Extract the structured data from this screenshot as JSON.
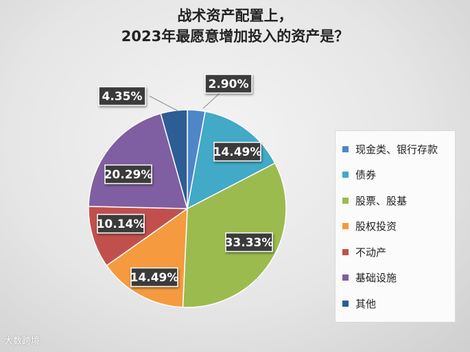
{
  "chart_data": {
    "type": "pie",
    "title_lines": [
      "战术资产配置上，",
      "2023年最愿意增加投入的资产是？"
    ],
    "legend_position": "right",
    "categories": [
      "现金类、银行存款",
      "债券",
      "股票、股基",
      "股权投资",
      "不动产",
      "基础设施",
      "其他"
    ],
    "values": [
      2.9,
      14.49,
      33.33,
      14.49,
      10.14,
      20.29,
      4.35
    ],
    "data_labels": [
      "2.90%",
      "14.49%",
      "33.33%",
      "14.49%",
      "10.14%",
      "20.29%",
      "4.35%"
    ],
    "colors": [
      "#4f86c8",
      "#42a9c6",
      "#9bbb4f",
      "#f59a3e",
      "#c1504d",
      "#7f5fa1",
      "#2d5d95"
    ]
  },
  "watermark": "大数跨境"
}
